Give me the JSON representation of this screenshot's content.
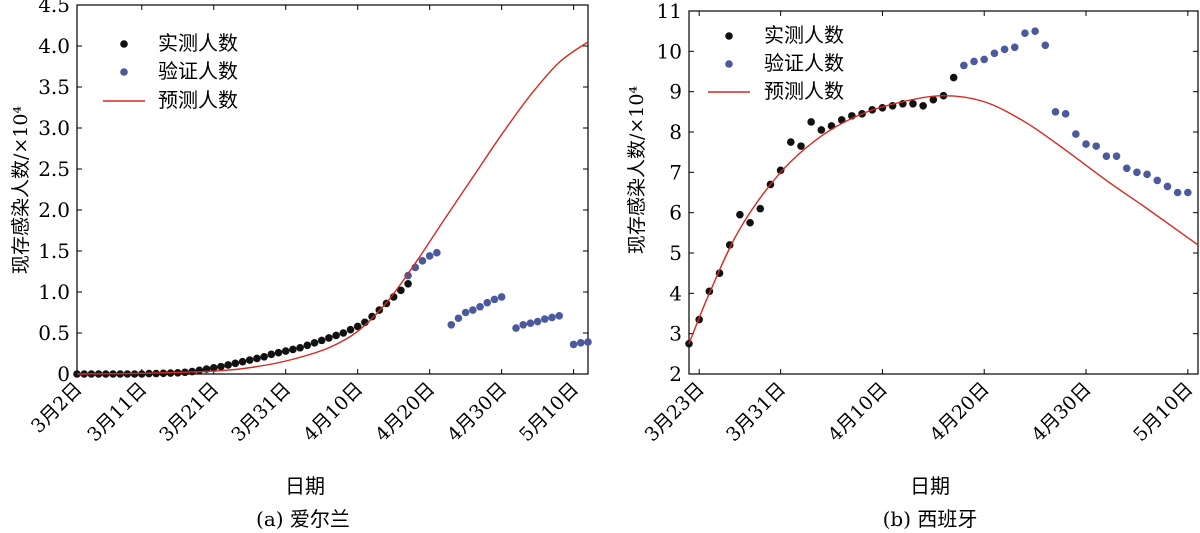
{
  "chart_data": [
    {
      "type": "scatter",
      "caption": "(a) 爱尔兰",
      "xlabel": "日期",
      "ylabel": "现存感染人数/×10⁴",
      "x_ticks": [
        "3月2日",
        "3月11日",
        "3月21日",
        "3月31日",
        "4月10日",
        "4月20日",
        "4月30日",
        "5月10日"
      ],
      "y_ticks": [
        "0",
        "0.5",
        "1.0",
        "1.5",
        "2.0",
        "2.5",
        "3.0",
        "3.5",
        "4.0",
        "4.5"
      ],
      "ylim": [
        0,
        4.5
      ],
      "xlim": [
        "3月2日",
        "5月12日"
      ],
      "legend": {
        "position": "top-left",
        "entries": [
          "实测人数",
          "验证人数",
          "预测人数"
        ]
      },
      "colors": {
        "measured": "#111111",
        "validation": "#4a5a9c",
        "predicted": "#d42a22"
      },
      "series": [
        {
          "name": "实测人数",
          "kind": "scatter",
          "x": [
            "3月2日",
            "3月3日",
            "3月4日",
            "3月5日",
            "3月6日",
            "3月7日",
            "3月8日",
            "3月9日",
            "3月10日",
            "3月11日",
            "3月12日",
            "3月13日",
            "3月14日",
            "3月15日",
            "3月16日",
            "3月17日",
            "3月18日",
            "3月19日",
            "3月20日",
            "3月21日",
            "3月22日",
            "3月23日",
            "3月24日",
            "3月25日",
            "3月26日",
            "3月27日",
            "3月28日",
            "3月29日",
            "3月30日",
            "3月31日",
            "4月1日",
            "4月2日",
            "4月3日",
            "4月4日",
            "4月5日",
            "4月6日",
            "4月7日",
            "4月8日",
            "4月9日",
            "4月10日",
            "4月11日",
            "4月12日",
            "4月13日",
            "4月14日",
            "4月15日",
            "4月16日",
            "4月17日"
          ],
          "values": [
            0.0,
            0.0,
            0.0,
            0.0,
            0.0,
            0.0,
            0.0,
            0.0,
            0.0,
            0.0,
            0.005,
            0.006,
            0.008,
            0.012,
            0.015,
            0.02,
            0.03,
            0.045,
            0.06,
            0.075,
            0.09,
            0.11,
            0.13,
            0.15,
            0.17,
            0.19,
            0.21,
            0.24,
            0.26,
            0.28,
            0.3,
            0.32,
            0.35,
            0.38,
            0.41,
            0.44,
            0.47,
            0.5,
            0.54,
            0.58,
            0.63,
            0.7,
            0.78,
            0.86,
            0.94,
            1.02,
            1.1
          ]
        },
        {
          "name": "验证人数",
          "kind": "scatter",
          "x": [
            "4月17日",
            "4月18日",
            "4月19日",
            "4月20日",
            "4月21日",
            "4月23日",
            "4月24日",
            "4月25日",
            "4月26日",
            "4月27日",
            "4月28日",
            "4月29日",
            "4月30日",
            "5月2日",
            "5月3日",
            "5月4日",
            "5月5日",
            "5月6日",
            "5月7日",
            "5月8日",
            "5月10日",
            "5月11日",
            "5月12日"
          ],
          "values": [
            1.2,
            1.3,
            1.38,
            1.44,
            1.48,
            0.6,
            0.68,
            0.75,
            0.78,
            0.82,
            0.87,
            0.91,
            0.94,
            0.56,
            0.6,
            0.62,
            0.64,
            0.67,
            0.69,
            0.71,
            0.36,
            0.38,
            0.39
          ]
        },
        {
          "name": "预测人数",
          "kind": "line",
          "x": [
            "3月2日",
            "3月12日",
            "3月22日",
            "3月27日",
            "4月1日",
            "4月6日",
            "4月10日",
            "4月14日",
            "4月18日",
            "4月22日",
            "4月26日",
            "4月30日",
            "5月4日",
            "5月8日",
            "5月12日"
          ],
          "values": [
            0,
            0.01,
            0.04,
            0.09,
            0.18,
            0.32,
            0.52,
            0.87,
            1.35,
            1.88,
            2.4,
            2.92,
            3.4,
            3.8,
            4.05
          ]
        }
      ]
    },
    {
      "type": "scatter",
      "caption": "(b) 西班牙",
      "xlabel": "日期",
      "ylabel": "现存感染人数/×10⁴",
      "x_ticks": [
        "3月23日",
        "3月31日",
        "4月10日",
        "4月20日",
        "4月30日",
        "5月10日"
      ],
      "y_ticks": [
        "2",
        "3",
        "4",
        "5",
        "6",
        "7",
        "8",
        "9",
        "10",
        "11"
      ],
      "ylim": [
        2,
        11
      ],
      "xlim": [
        "3月22日",
        "5月11日"
      ],
      "legend": {
        "position": "top-left",
        "entries": [
          "实测人数",
          "验证人数",
          "预测人数"
        ]
      },
      "colors": {
        "measured": "#111111",
        "validation": "#4a5a9c",
        "predicted": "#d42a22"
      },
      "series": [
        {
          "name": "实测人数",
          "kind": "scatter",
          "x": [
            "3月22日",
            "3月23日",
            "3月24日",
            "3月25日",
            "3月26日",
            "3月27日",
            "3月28日",
            "3月29日",
            "3月30日",
            "3月31日",
            "4月1日",
            "4月2日",
            "4月3日",
            "4月4日",
            "4月5日",
            "4月6日",
            "4月7日",
            "4月8日",
            "4月9日",
            "4月10日",
            "4月11日",
            "4月12日",
            "4月13日",
            "4月14日",
            "4月15日",
            "4月16日",
            "4月17日"
          ],
          "values": [
            2.75,
            3.35,
            4.05,
            4.5,
            5.2,
            5.95,
            5.75,
            6.1,
            6.7,
            7.05,
            7.75,
            7.65,
            8.25,
            8.05,
            8.15,
            8.3,
            8.4,
            8.45,
            8.55,
            8.6,
            8.65,
            8.7,
            8.7,
            8.65,
            8.8,
            8.9,
            9.35
          ]
        },
        {
          "name": "验证人数",
          "kind": "scatter",
          "x": [
            "4月18日",
            "4月19日",
            "4月20日",
            "4月21日",
            "4月22日",
            "4月23日",
            "4月24日",
            "4月25日",
            "4月26日",
            "4月27日",
            "4月28日",
            "4月29日",
            "4月30日",
            "5月1日",
            "5月2日",
            "5月3日",
            "5月4日",
            "5月5日",
            "5月6日",
            "5月7日",
            "5月8日",
            "5月9日",
            "5月10日"
          ],
          "values": [
            9.65,
            9.75,
            9.8,
            9.95,
            10.05,
            10.1,
            10.45,
            10.5,
            10.15,
            8.5,
            8.45,
            7.95,
            7.7,
            7.65,
            7.4,
            7.4,
            7.1,
            7.0,
            6.95,
            6.8,
            6.65,
            6.5,
            6.5
          ]
        },
        {
          "name": "预测人数",
          "kind": "line",
          "x": [
            "3月22日",
            "3月24日",
            "3月27日",
            "3月31日",
            "4月4日",
            "4月8日",
            "4月12日",
            "4月16日",
            "4月20日",
            "4月24日",
            "4月28日",
            "5月2日",
            "5月6日",
            "5月11日"
          ],
          "values": [
            2.75,
            4.0,
            5.6,
            7.0,
            7.9,
            8.45,
            8.75,
            8.9,
            8.75,
            8.25,
            7.55,
            6.8,
            6.1,
            5.2
          ]
        }
      ]
    }
  ]
}
